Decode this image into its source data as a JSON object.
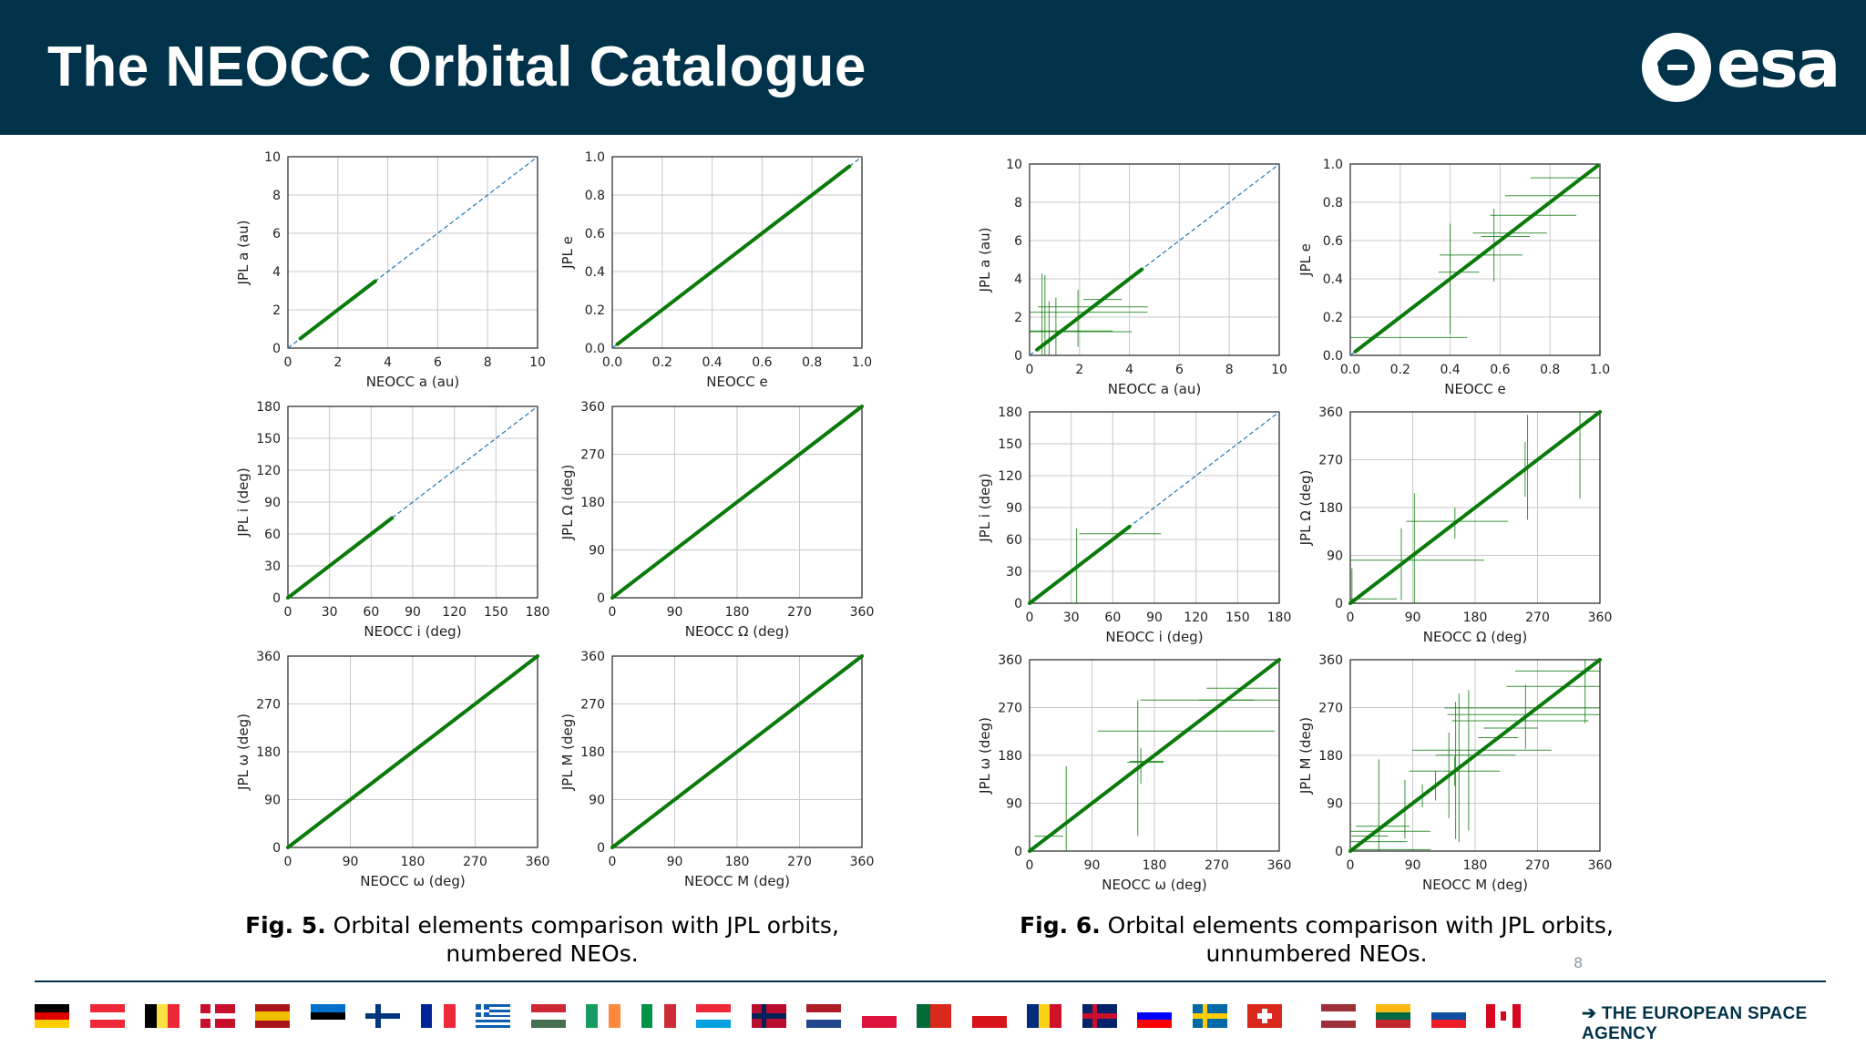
{
  "header": {
    "title": "The NEOCC Orbital Catalogue",
    "logo_text": "esa"
  },
  "captions": {
    "fig5": {
      "label": "Fig. 5.",
      "line1": "Orbital elements comparison with JPL orbits,",
      "line2": "numbered NEOs."
    },
    "fig6": {
      "label": "Fig. 6.",
      "line1": "Orbital elements comparison with JPL orbits,",
      "line2": "unnumbered NEOs."
    }
  },
  "page_number": "8",
  "footer": {
    "agency": "THE EUROPEAN SPACE AGENCY",
    "arrow": "➔"
  },
  "colors": {
    "header_bg": "#003249",
    "data_green": "#0a7a0a",
    "ref_line": "#1f77b4"
  },
  "chart_data": [
    {
      "type": "scatter",
      "figure": "Fig. 5",
      "xlabel": "NEOCC a (au)",
      "ylabel": "JPL a (au)",
      "xlim": [
        0,
        10
      ],
      "ylim": [
        0,
        10
      ],
      "xticks": [
        "0",
        "2",
        "4",
        "6",
        "8",
        "10"
      ],
      "yticks": [
        "0",
        "2",
        "4",
        "6",
        "8",
        "10"
      ],
      "data_range": [
        0.5,
        3.5
      ],
      "grid": true
    },
    {
      "type": "scatter",
      "figure": "Fig. 5",
      "xlabel": "NEOCC e",
      "ylabel": "JPL e",
      "xlim": [
        0,
        1
      ],
      "ylim": [
        0,
        1
      ],
      "xticks": [
        "0.0",
        "0.2",
        "0.4",
        "0.6",
        "0.8",
        "1.0"
      ],
      "yticks": [
        "0.0",
        "0.2",
        "0.4",
        "0.6",
        "0.8",
        "1.0"
      ],
      "data_range": [
        0.02,
        0.95
      ],
      "grid": true
    },
    {
      "type": "scatter",
      "figure": "Fig. 5",
      "xlabel": "NEOCC i (deg)",
      "ylabel": "JPL i (deg)",
      "xlim": [
        0,
        180
      ],
      "ylim": [
        0,
        180
      ],
      "xticks": [
        "0",
        "30",
        "60",
        "90",
        "120",
        "150",
        "180"
      ],
      "yticks": [
        "0",
        "30",
        "60",
        "90",
        "120",
        "150",
        "180"
      ],
      "data_range": [
        0,
        75
      ],
      "grid": true
    },
    {
      "type": "scatter",
      "figure": "Fig. 5",
      "xlabel": "NEOCC Ω (deg)",
      "ylabel": "JPL Ω (deg)",
      "xlim": [
        0,
        360
      ],
      "ylim": [
        0,
        360
      ],
      "xticks": [
        "0",
        "90",
        "180",
        "270",
        "360"
      ],
      "yticks": [
        "0",
        "90",
        "180",
        "270",
        "360"
      ],
      "data_range": [
        0,
        360
      ],
      "grid": true
    },
    {
      "type": "scatter",
      "figure": "Fig. 5",
      "xlabel": "NEOCC ω (deg)",
      "ylabel": "JPL ω (deg)",
      "xlim": [
        0,
        360
      ],
      "ylim": [
        0,
        360
      ],
      "xticks": [
        "0",
        "90",
        "180",
        "270",
        "360"
      ],
      "yticks": [
        "0",
        "90",
        "180",
        "270",
        "360"
      ],
      "data_range": [
        0,
        360
      ],
      "grid": true
    },
    {
      "type": "scatter",
      "figure": "Fig. 5",
      "xlabel": "NEOCC M (deg)",
      "ylabel": "JPL M (deg)",
      "xlim": [
        0,
        360
      ],
      "ylim": [
        0,
        360
      ],
      "xticks": [
        "0",
        "90",
        "180",
        "270",
        "360"
      ],
      "yticks": [
        "0",
        "90",
        "180",
        "270",
        "360"
      ],
      "data_range": [
        0,
        360
      ],
      "grid": true
    },
    {
      "type": "scatter",
      "figure": "Fig. 6",
      "xlabel": "NEOCC a (au)",
      "ylabel": "JPL a (au)",
      "xlim": [
        0,
        10
      ],
      "ylim": [
        0,
        10
      ],
      "xticks": [
        "0",
        "2",
        "4",
        "6",
        "8",
        "10"
      ],
      "yticks": [
        "0",
        "2",
        "4",
        "6",
        "8",
        "10"
      ],
      "data_range": [
        0.3,
        4.5
      ],
      "grid": true
    },
    {
      "type": "scatter",
      "figure": "Fig. 6",
      "xlabel": "NEOCC e",
      "ylabel": "JPL e",
      "xlim": [
        0,
        1
      ],
      "ylim": [
        0,
        1
      ],
      "xticks": [
        "0.0",
        "0.2",
        "0.4",
        "0.6",
        "0.8",
        "1.0"
      ],
      "yticks": [
        "0.0",
        "0.2",
        "0.4",
        "0.6",
        "0.8",
        "1.0"
      ],
      "data_range": [
        0.02,
        0.99
      ],
      "grid": true
    },
    {
      "type": "scatter",
      "figure": "Fig. 6",
      "xlabel": "NEOCC i (deg)",
      "ylabel": "JPL i (deg)",
      "xlim": [
        0,
        180
      ],
      "ylim": [
        0,
        180
      ],
      "xticks": [
        "0",
        "30",
        "60",
        "90",
        "120",
        "150",
        "180"
      ],
      "yticks": [
        "0",
        "30",
        "60",
        "90",
        "120",
        "150",
        "180"
      ],
      "data_range": [
        0,
        72
      ],
      "grid": true
    },
    {
      "type": "scatter",
      "figure": "Fig. 6",
      "xlabel": "NEOCC Ω (deg)",
      "ylabel": "JPL Ω (deg)",
      "xlim": [
        0,
        360
      ],
      "ylim": [
        0,
        360
      ],
      "xticks": [
        "0",
        "90",
        "180",
        "270",
        "360"
      ],
      "yticks": [
        "0",
        "90",
        "180",
        "270",
        "360"
      ],
      "data_range": [
        0,
        360
      ],
      "grid": true
    },
    {
      "type": "scatter",
      "figure": "Fig. 6",
      "xlabel": "NEOCC ω (deg)",
      "ylabel": "JPL ω (deg)",
      "xlim": [
        0,
        360
      ],
      "ylim": [
        0,
        360
      ],
      "xticks": [
        "0",
        "90",
        "180",
        "270",
        "360"
      ],
      "yticks": [
        "0",
        "90",
        "180",
        "270",
        "360"
      ],
      "data_range": [
        0,
        360
      ],
      "grid": true
    },
    {
      "type": "scatter",
      "figure": "Fig. 6",
      "xlabel": "NEOCC M (deg)",
      "ylabel": "JPL M (deg)",
      "xlim": [
        0,
        360
      ],
      "ylim": [
        0,
        360
      ],
      "xticks": [
        "0",
        "90",
        "180",
        "270",
        "360"
      ],
      "yticks": [
        "0",
        "90",
        "180",
        "270",
        "360"
      ],
      "data_range": [
        0,
        360
      ],
      "grid": true
    }
  ]
}
